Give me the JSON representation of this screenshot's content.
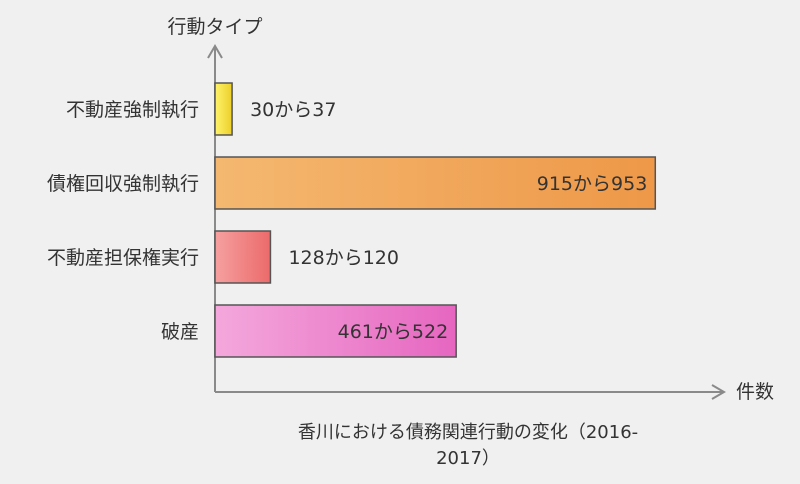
{
  "chart_data": {
    "type": "bar",
    "orientation": "horizontal",
    "xlabel": "件数",
    "ylabel": "行動タイプ",
    "caption_lines": [
      "香川における債務関連行動の変化（2016-",
      "2017）"
    ],
    "categories": [
      "不動産強制執行",
      "債権回収強制執行",
      "不動産担保権実行",
      "破産"
    ],
    "series": [
      {
        "values": [
          37,
          953,
          120,
          522
        ],
        "labels": [
          "30から37",
          "915から953",
          "128から120",
          "461から522"
        ],
        "colors": [
          "#f0dc3c",
          "#f0a050",
          "#f07878",
          "#ee7ac8"
        ]
      }
    ],
    "xlim": [
      0,
      1000
    ],
    "grid": false,
    "legend": "none"
  }
}
